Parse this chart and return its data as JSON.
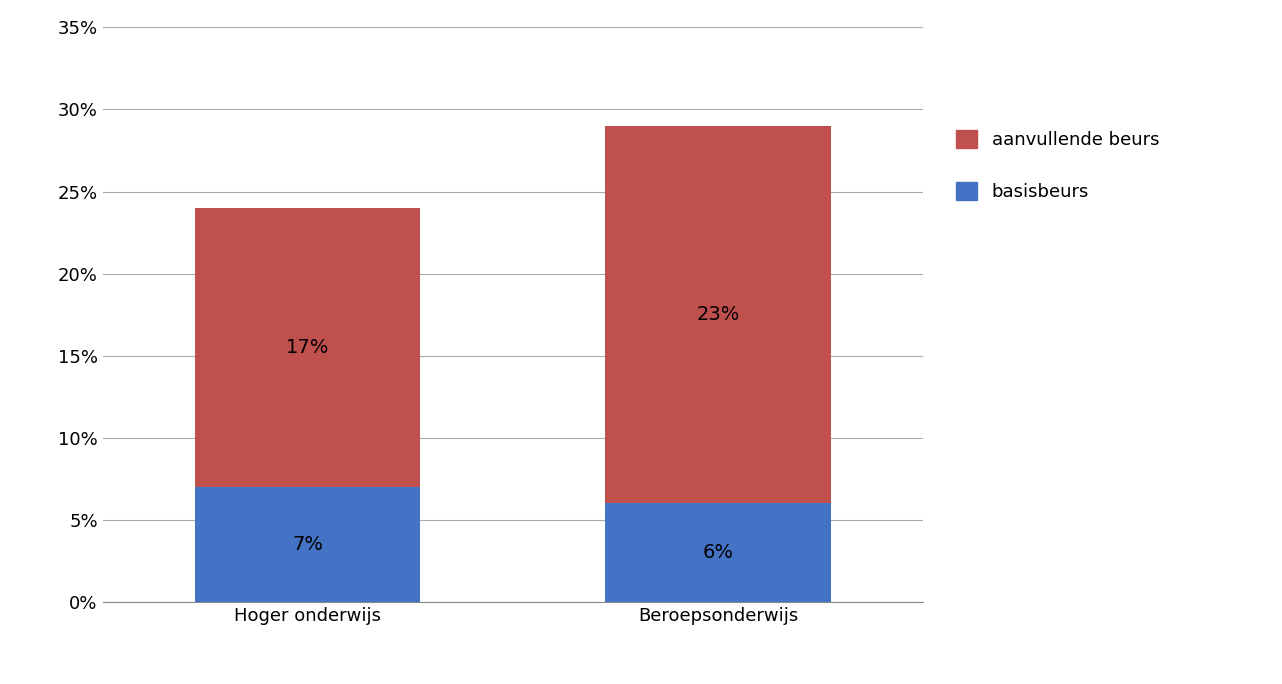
{
  "categories": [
    "Hoger onderwijs",
    "Beroepsonderwijs"
  ],
  "basisbeurs": [
    7,
    6
  ],
  "aanvullende_beurs": [
    17,
    23
  ],
  "basisbeurs_color": "#4472C4",
  "aanvullende_beurs_color": "#C0504D",
  "basisbeurs_label": "basisbeurs",
  "aanvullende_label": "aanvullende beurs",
  "ylim": [
    0,
    0.35
  ],
  "yticks": [
    0,
    0.05,
    0.1,
    0.15,
    0.2,
    0.25,
    0.3,
    0.35
  ],
  "ytick_labels": [
    "0%",
    "5%",
    "10%",
    "15%",
    "20%",
    "25%",
    "30%",
    "35%"
  ],
  "bar_width": 0.55,
  "label_fontsize": 14,
  "tick_fontsize": 13,
  "legend_fontsize": 13,
  "background_color": "#FFFFFF"
}
